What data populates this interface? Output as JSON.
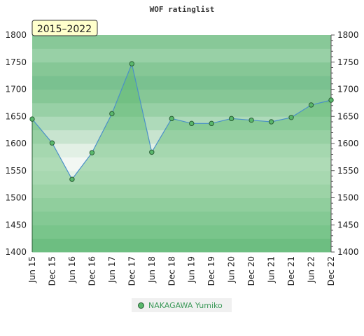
{
  "chart_data": {
    "type": "line",
    "title": "WOF ratinglist",
    "period_label": "2015–2022",
    "categories": [
      "Jun 15",
      "Dec 15",
      "Jun 16",
      "Dec 16",
      "Jun 17",
      "Dec 17",
      "Jun 18",
      "Dec 18",
      "Jun 19",
      "Dec 19",
      "Jun 20",
      "Dec 20",
      "Jun 21",
      "Dec 21",
      "Jun 22",
      "Dec 22"
    ],
    "series": [
      {
        "name": "NAKAGAWA Yumiko",
        "values": [
          1645,
          1601,
          1534,
          1583,
          1655,
          1747,
          1584,
          1646,
          1637,
          1637,
          1646,
          1643,
          1640,
          1648,
          1671,
          1680
        ]
      }
    ],
    "ylim": [
      1400,
      1800
    ],
    "yticks": [
      1400,
      1450,
      1500,
      1550,
      1600,
      1650,
      1700,
      1750,
      1800
    ],
    "xlabel": "",
    "ylabel": "",
    "legend_position": "bottom",
    "colors": {
      "line": "#4a90c8",
      "marker": "#5ab86c",
      "marker_edge": "#2a5f36",
      "area": "#5ab86c"
    }
  }
}
